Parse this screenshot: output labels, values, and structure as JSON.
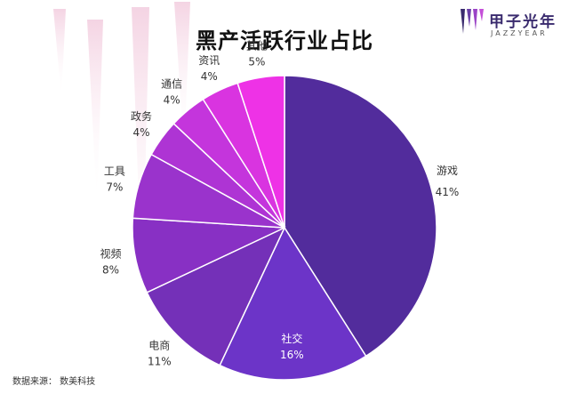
{
  "chart_data": {
    "type": "pie",
    "title": "黑产活跃行业占比",
    "slices": [
      {
        "label": "游戏",
        "value": 41,
        "value_label": "41%",
        "color": "#522c9c"
      },
      {
        "label": "社交",
        "value": 16,
        "value_label": "16%",
        "color": "#6c34c8"
      },
      {
        "label": "电商",
        "value": 11,
        "value_label": "11%",
        "color": "#7430b8"
      },
      {
        "label": "视频",
        "value": 8,
        "value_label": "8%",
        "color": "#8830c4"
      },
      {
        "label": "工具",
        "value": 7,
        "value_label": "7%",
        "color": "#9a33cc"
      },
      {
        "label": "政务",
        "value": 4,
        "value_label": "4%",
        "color": "#ae34d4"
      },
      {
        "label": "通信",
        "value": 4,
        "value_label": "4%",
        "color": "#c435dc"
      },
      {
        "label": "资讯",
        "value": 4,
        "value_label": "4%",
        "color": "#d934e0"
      },
      {
        "label": "其他",
        "value": 5,
        "value_label": "5%",
        "color": "#ee32e6"
      }
    ],
    "start_angle_deg": 0,
    "direction": "clockwise"
  },
  "logo": {
    "name": "甲子光年",
    "sub": "JAZZYEAR"
  },
  "source": "数据来源： 数美科技",
  "colors": {
    "deco": "#f3d6e4",
    "brand": "#3a2b6e"
  }
}
